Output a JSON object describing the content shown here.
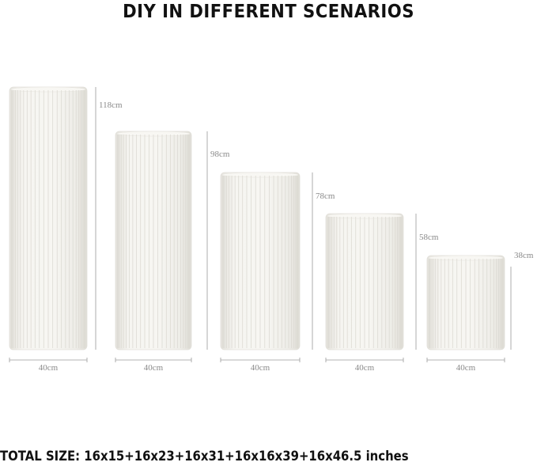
{
  "title": "DIY IN DIFFERENT SCENARIOS",
  "pedestals": [
    {
      "height_label": "118cm",
      "width_label": "40cm"
    },
    {
      "height_label": "98cm",
      "width_label": "40cm"
    },
    {
      "height_label": "78cm",
      "width_label": "40cm"
    },
    {
      "height_label": "58cm",
      "width_label": "40cm"
    },
    {
      "height_label": "38cm",
      "width_label": "40cm"
    }
  ],
  "total_size": "TOTAL SIZE: 16x15+16x23+16x31+16x16x39+16x46.5 inches",
  "colors": {
    "pedestal_fill": "#f3f2ee",
    "pleat_line": "#dcdad3",
    "dimension_line": "#9a9a9a",
    "text": "#111111"
  }
}
